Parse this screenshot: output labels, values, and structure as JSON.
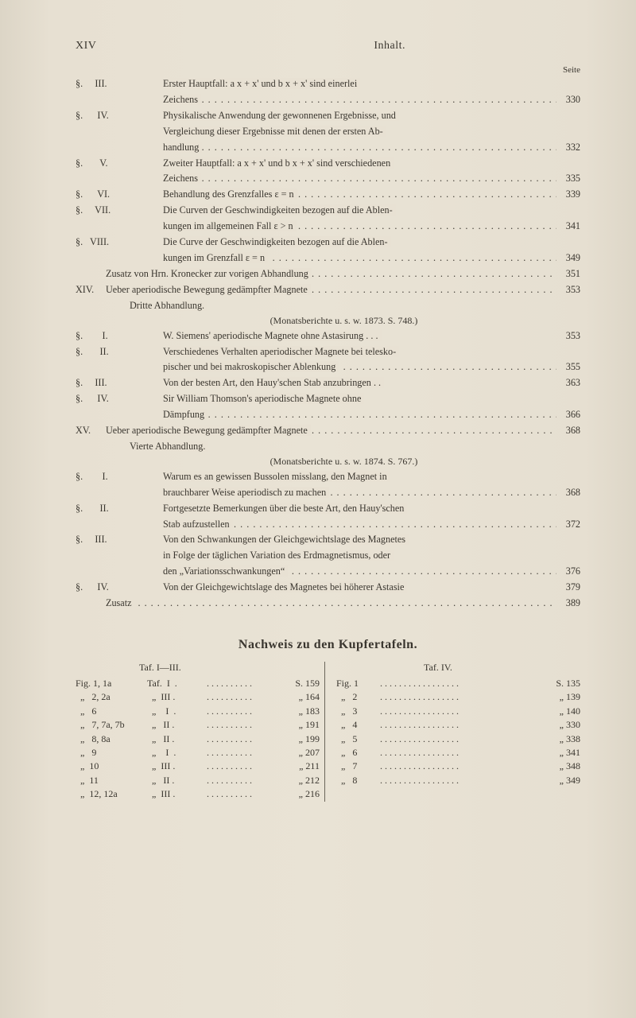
{
  "runningHead": {
    "left": "XIV",
    "right": "Inhalt."
  },
  "seiteLabel": "Seite",
  "toc": [
    {
      "label": "§.     III.",
      "text": "Erster Hauptfall: a x + x' und b x + x' sind einerlei",
      "page": ""
    },
    {
      "label": "",
      "text": "Zeichens",
      "page": "330",
      "leaders": true,
      "cont": true
    },
    {
      "label": "§.      IV.",
      "text": "Physikalische Anwendung der gewonnenen Ergebnisse, und",
      "page": ""
    },
    {
      "label": "",
      "text": "Vergleichung dieser Ergebnisse mit denen der ersten Ab-",
      "page": "",
      "cont": true
    },
    {
      "label": "",
      "text": "handlung",
      "page": "332",
      "leaders": true,
      "cont": true
    },
    {
      "label": "§.       V.",
      "text": "Zweiter Hauptfall: a x + x' und b x + x' sind verschiedenen",
      "page": ""
    },
    {
      "label": "",
      "text": "Zeichens",
      "page": "335",
      "leaders": true,
      "cont": true
    },
    {
      "label": "§.      VI.",
      "text": "Behandlung des Grenzfalles ε = n",
      "page": "339",
      "leaders": true
    },
    {
      "label": "§.     VII.",
      "text": "Die Curven der Geschwindigkeiten bezogen auf die Ablen-",
      "page": ""
    },
    {
      "label": "",
      "text": "kungen im allgemeinen Fall ε > n",
      "page": "341",
      "leaders": true,
      "cont": true
    },
    {
      "label": "§.   VIII.",
      "text": "Die Curve der Geschwindigkeiten bezogen auf die Ablen-",
      "page": ""
    },
    {
      "label": "",
      "text": "kungen im Grenzfall ε = n",
      "page": "349",
      "leaders": true,
      "cont": true
    },
    {
      "label": "",
      "text": "Zusatz von Hrn. Kronecker zur vorigen Abhandlung",
      "page": "351",
      "leaders": true,
      "zusatz": true
    },
    {
      "label": "XIV.",
      "text": "Ueber aperiodische Bewegung gedämpfter Magnete",
      "page": "353",
      "leaders": true,
      "chapter": true
    },
    {
      "label": "",
      "text": "Dritte Abhandlung.",
      "page": "",
      "chapterSub": true
    },
    {
      "centerNote": "(Monatsberichte u. s. w. 1873.  S. 748.)"
    },
    {
      "label": "§.        I.",
      "text": "W. Siemens' aperiodische Magnete ohne Astasirung  .  .  .",
      "page": "353"
    },
    {
      "label": "§.       II.",
      "text": "Verschiedenes Verhalten aperiodischer Magnete bei telesko-",
      "page": ""
    },
    {
      "label": "",
      "text": "pischer und bei makroskopischer Ablenkung",
      "page": "355",
      "leaders": true,
      "cont": true
    },
    {
      "label": "§.     III.",
      "text": "Von der besten Art, den Hauy'schen Stab anzubringen  .  .",
      "page": "363"
    },
    {
      "label": "§.      IV.",
      "text": "Sir William Thomson's aperiodische Magnete ohne",
      "page": ""
    },
    {
      "label": "",
      "text": "Dämpfung",
      "page": "366",
      "leaders": true,
      "cont": true
    },
    {
      "label": "XV.",
      "text": "Ueber aperiodische Bewegung gedämpfter Magnete",
      "page": "368",
      "leaders": true,
      "chapter": true
    },
    {
      "label": "",
      "text": "Vierte Abhandlung.",
      "page": "",
      "chapterSub": true
    },
    {
      "centerNote": "(Monatsberichte u. s. w. 1874.  S. 767.)"
    },
    {
      "label": "§.        I.",
      "text": "Warum es an gewissen Bussolen misslang, den Magnet in",
      "page": ""
    },
    {
      "label": "",
      "text": "brauchbarer Weise aperiodisch zu machen",
      "page": "368",
      "leaders": true,
      "cont": true
    },
    {
      "label": "§.       II.",
      "text": "Fortgesetzte Bemerkungen über die beste Art, den Hauy'schen",
      "page": ""
    },
    {
      "label": "",
      "text": "Stab aufzustellen",
      "page": "372",
      "leaders": true,
      "cont": true
    },
    {
      "label": "§.     III.",
      "text": "Von den Schwankungen der Gleichgewichtslage des Magnetes",
      "page": ""
    },
    {
      "label": "",
      "text": "in Folge der täglichen Variation des Erdmagnetismus, oder",
      "page": "",
      "cont": true
    },
    {
      "label": "",
      "text": "den „Variationsschwankungen“",
      "page": "376",
      "leaders": true,
      "cont": true
    },
    {
      "label": "§.      IV.",
      "text": "Von der Gleichgewichtslage des Magnetes bei höherer Astasie",
      "page": "379"
    },
    {
      "label": "",
      "text": "Zusatz",
      "page": "389",
      "leaders": true,
      "zusatz": true
    }
  ],
  "nachweis": {
    "heading": "Nachweis zu den Kupfertafeln.",
    "leftHead": "Taf. I—III.",
    "rightHead": "Taf. IV.",
    "left": [
      {
        "a": "Fig. 1, 1a",
        "b": "Taf.  I  .",
        "d": "S. 159"
      },
      {
        "a": "  „   2, 2a",
        "b": "  „  III .",
        "d": "„ 164"
      },
      {
        "a": "  „   6",
        "b": "  „    I  .",
        "d": "„ 183"
      },
      {
        "a": "  „   7, 7a, 7b",
        "b": "  „   II .",
        "d": "„ 191"
      },
      {
        "a": "  „   8, 8a",
        "b": "  „   II .",
        "d": "„ 199"
      },
      {
        "a": "  „   9",
        "b": "  „    I  .",
        "d": "„ 207"
      },
      {
        "a": "  „  10",
        "b": "  „  III .",
        "d": "„ 211"
      },
      {
        "a": "  „  11",
        "b": "  „   II .",
        "d": "„ 212"
      },
      {
        "a": "  „  12, 12a",
        "b": "  „  III .",
        "d": "„ 216"
      }
    ],
    "right": [
      {
        "a": "Fig. 1",
        "c": "S. 135"
      },
      {
        "a": "  „   2",
        "c": "„ 139"
      },
      {
        "a": "  „   3",
        "c": "„ 140"
      },
      {
        "a": "  „   4",
        "c": "„ 330"
      },
      {
        "a": "  „   5",
        "c": "„ 338"
      },
      {
        "a": "  „   6",
        "c": "„ 341"
      },
      {
        "a": "  „   7",
        "c": "„ 348"
      },
      {
        "a": "  „   8",
        "c": "„ 349"
      }
    ]
  }
}
